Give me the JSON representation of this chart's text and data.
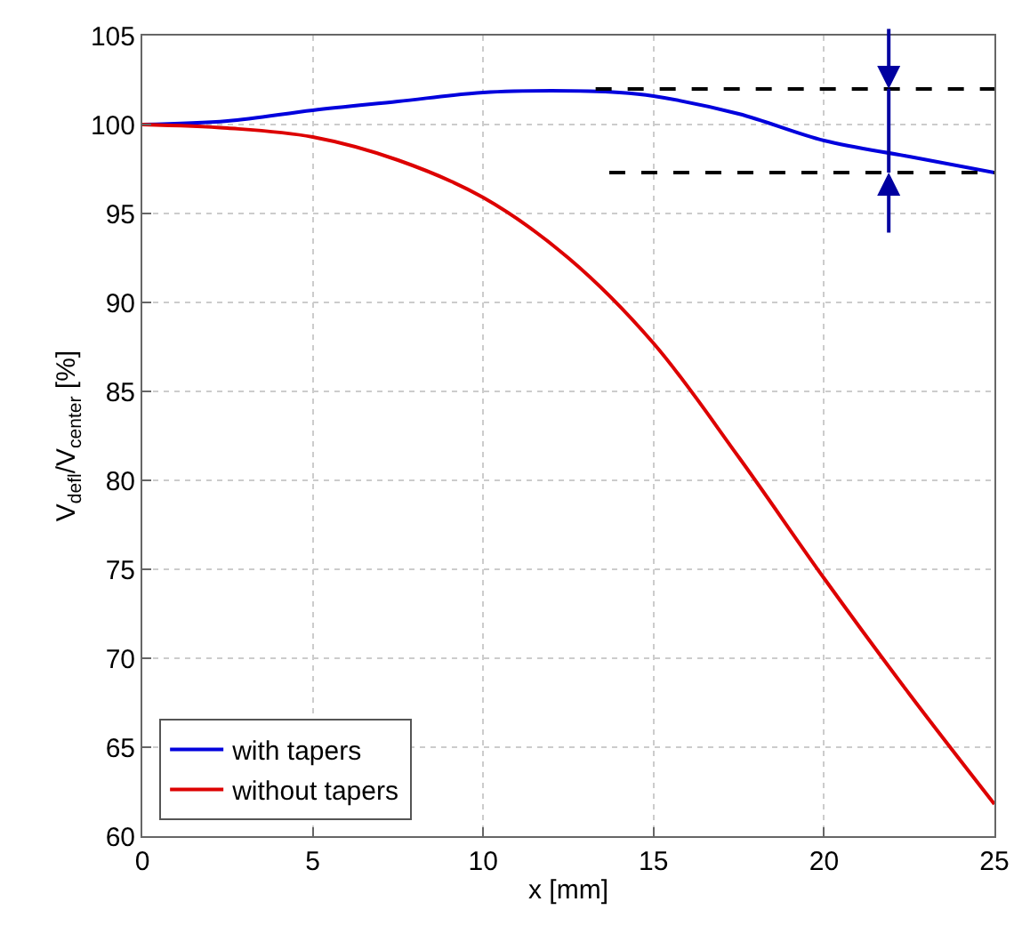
{
  "chart_data": {
    "type": "line",
    "xlabel": "x [mm]",
    "ylabel": "V$_{defl}$/V$_{center}$ [%]",
    "xlim": [
      0,
      25
    ],
    "xticks": [
      0,
      5,
      10,
      15,
      20,
      25
    ],
    "ylim": [
      60,
      105
    ],
    "yticks": [
      60,
      65,
      70,
      75,
      80,
      85,
      90,
      95,
      100,
      105
    ],
    "grid": true,
    "legend": "bottom left",
    "line_style": "solid",
    "series": [
      {
        "name": "with tapers",
        "color": "#0000dd",
        "x": [
          0,
          2.5,
          5,
          7.5,
          10,
          12,
          14,
          15,
          17.5,
          20,
          22.5,
          25
        ],
        "values": [
          100,
          100.2,
          100.8,
          101.3,
          101.8,
          101.9,
          101.8,
          101.6,
          100.6,
          99.1,
          98.2,
          97.3
        ]
      },
      {
        "name": "without tapers",
        "color": "#dd0000",
        "x": [
          0,
          2.5,
          5,
          7.5,
          10,
          12.5,
          15,
          17.5,
          20,
          22.5,
          25
        ],
        "values": [
          100,
          99.8,
          99.3,
          98,
          95.9,
          92.5,
          87.7,
          81.3,
          74.5,
          68,
          61.8
        ]
      },
      {
        "color": "#000000",
        "line_style": "dashed",
        "x": [
          13.3,
          25
        ],
        "values": [
          102,
          102
        ]
      },
      {
        "color": "#000000",
        "line_style": "dashed",
        "x": [
          13.7,
          25
        ],
        "values": [
          97.3,
          97.3
        ]
      },
      {
        "color": "#0000a0",
        "x": [
          21.9,
          21.9
        ],
        "values": [
          102,
          97.3
        ]
      }
    ]
  }
}
